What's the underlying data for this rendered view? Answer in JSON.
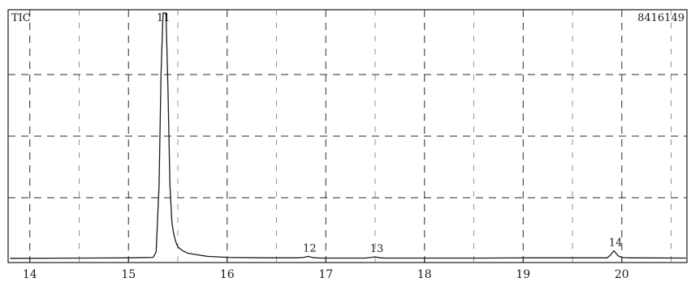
{
  "chart_data": {
    "type": "line",
    "title": "",
    "xlabel": "",
    "ylabel": "",
    "corner_left_label": "TIC",
    "corner_right_label": "8416149",
    "xlim": [
      13.78,
      20.66
    ],
    "ylim": [
      0,
      100
    ],
    "x_ticks": [
      14,
      15,
      16,
      17,
      18,
      19,
      20
    ],
    "x_tick_labels": [
      "14",
      "15",
      "16",
      "17",
      "18",
      "19",
      "20"
    ],
    "grid": true,
    "series": [
      {
        "x": [
          13.8,
          14.5,
          15.0,
          15.25,
          15.28,
          15.31,
          15.33,
          15.35,
          15.37,
          15.38,
          15.4,
          15.42,
          15.44,
          15.46,
          15.48,
          15.5,
          15.55,
          15.6,
          15.67,
          15.8,
          16.0,
          16.4,
          16.7,
          16.78,
          16.82,
          16.86,
          16.9,
          16.95,
          17.0,
          17.4,
          17.5,
          17.55,
          17.6,
          18.0,
          18.6,
          19.0,
          19.5,
          19.85,
          19.88,
          19.92,
          19.96,
          20.0,
          20.1,
          20.65
        ],
        "y": [
          0.4,
          0.5,
          0.6,
          0.8,
          3,
          30,
          75,
          100,
          100,
          100,
          70,
          30,
          15,
          10,
          7,
          5,
          3.5,
          2.5,
          2,
          1.2,
          0.8,
          0.6,
          0.6,
          0.8,
          1.2,
          0.8,
          0.6,
          0.5,
          0.5,
          0.5,
          1.0,
          0.6,
          0.5,
          0.5,
          0.5,
          0.6,
          0.6,
          0.6,
          1.5,
          3.5,
          1.5,
          0.7,
          0.6,
          0.5
        ],
        "color": "#1a1a1a"
      }
    ],
    "peaks": [
      {
        "label": "11",
        "x": 15.37,
        "y": 100
      },
      {
        "label": "12",
        "x": 16.82,
        "y": 1.2
      },
      {
        "label": "13",
        "x": 17.5,
        "y": 1.0
      },
      {
        "label": "14",
        "x": 19.92,
        "y": 3.5
      }
    ]
  }
}
